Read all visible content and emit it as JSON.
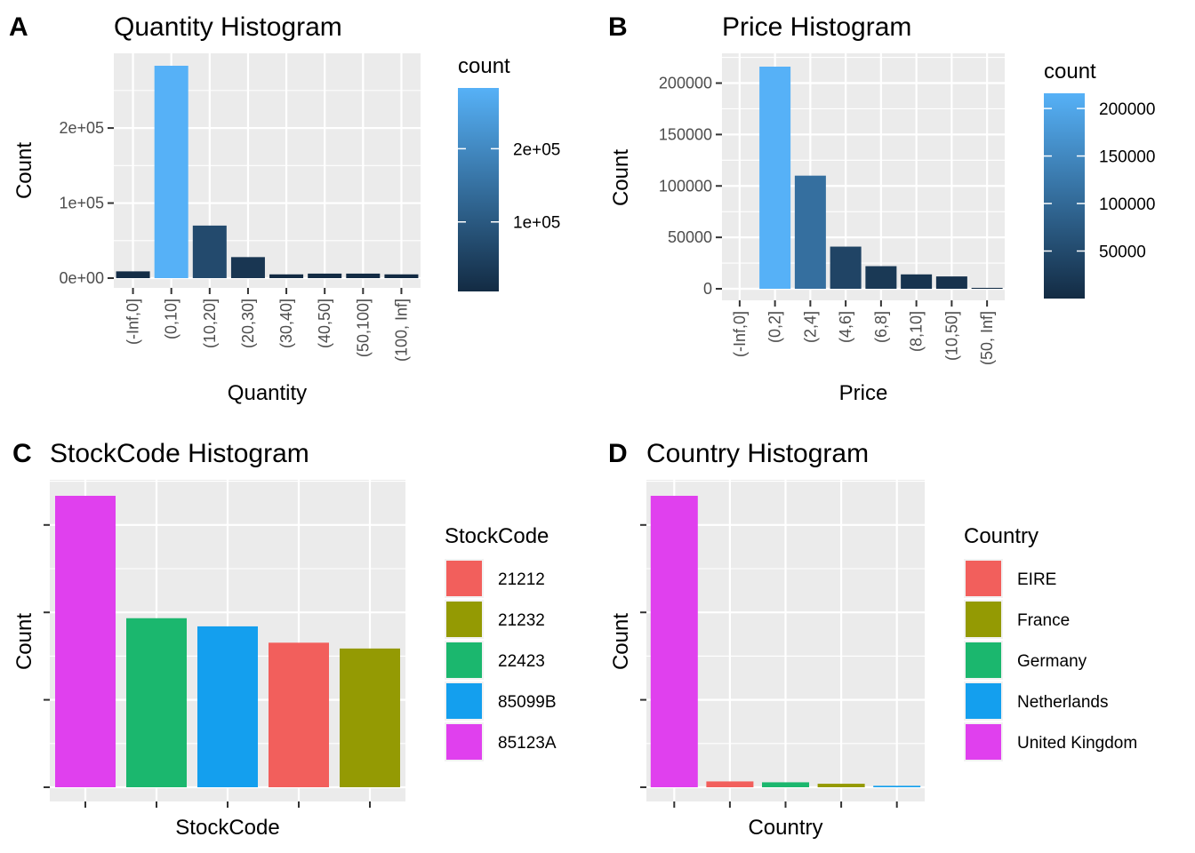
{
  "panels": [
    {
      "tag": "A",
      "title": "Quantity Histogram"
    },
    {
      "tag": "B",
      "title": "Price Histogram"
    },
    {
      "tag": "C",
      "title": "StockCode Histogram"
    },
    {
      "tag": "D",
      "title": "Country Histogram"
    }
  ],
  "chart_data": [
    {
      "type": "bar",
      "title": "Quantity Histogram",
      "xlabel": "Quantity",
      "ylabel": "Count",
      "categories": [
        "(-Inf,0]",
        "(0,10]",
        "(10,20]",
        "(20,30]",
        "(30,40]",
        "(40,50]",
        "(50,100]",
        "(100, Inf]"
      ],
      "values": [
        9000,
        283000,
        70000,
        28000,
        5000,
        6000,
        6000,
        5000
      ],
      "ylim": [
        0,
        283000
      ],
      "yticks": [
        0,
        100000,
        200000
      ],
      "yticklabels": [
        "0e+00",
        "1e+05",
        "2e+05"
      ],
      "grid": true,
      "fill_scale": "count",
      "legend": {
        "title": "count",
        "labels": [
          "1e+05",
          "2e+05"
        ],
        "values": [
          100000,
          200000
        ],
        "min": 5000,
        "max": 283000,
        "low_color": "#132B43",
        "high_color": "#56B1F7",
        "position": "right"
      }
    },
    {
      "type": "bar",
      "title": "Price Histogram",
      "xlabel": "Price",
      "ylabel": "Count",
      "categories": [
        "(-Inf,0]",
        "(0,2]",
        "(2,4]",
        "(4,6]",
        "(6,8]",
        "(8,10]",
        "(10,50]",
        "(50, Inf]"
      ],
      "values": [
        0,
        216000,
        110000,
        41000,
        22000,
        14000,
        12000,
        900
      ],
      "ylim": [
        0,
        216000
      ],
      "yticks": [
        0,
        50000,
        100000,
        150000,
        200000
      ],
      "yticklabels": [
        "0",
        "50000",
        "100000",
        "150000",
        "200000"
      ],
      "grid": true,
      "fill_scale": "count",
      "legend": {
        "title": "count",
        "labels": [
          "50000",
          "100000",
          "150000",
          "200000"
        ],
        "values": [
          50000,
          100000,
          150000,
          200000
        ],
        "min": 0,
        "max": 216000,
        "low_color": "#132B43",
        "high_color": "#56B1F7",
        "position": "right"
      }
    },
    {
      "type": "bar",
      "title": "StockCode Histogram",
      "xlabel": "StockCode",
      "ylabel": "Count",
      "categories": [
        "85123A",
        "22423",
        "85099B",
        "21212",
        "21232"
      ],
      "values": [
        1000,
        580,
        552,
        496,
        476
      ],
      "colors": [
        "#E040EE",
        "#1BB76E",
        "#149FEE",
        "#F25F5C",
        "#949A03"
      ],
      "ylim": [
        0,
        1000
      ],
      "grid": true,
      "legend": {
        "title": "StockCode",
        "labels": [
          "21212",
          "21232",
          "22423",
          "85099B",
          "85123A"
        ],
        "colors": [
          "#F25F5C",
          "#949A03",
          "#1BB76E",
          "#149FEE",
          "#E040EE"
        ],
        "position": "right"
      }
    },
    {
      "type": "bar",
      "title": "Country Histogram",
      "xlabel": "Country",
      "ylabel": "Count",
      "categories": [
        "United Kingdom",
        "EIRE",
        "Germany",
        "France",
        "Netherlands"
      ],
      "values": [
        1000,
        20,
        17,
        12,
        5
      ],
      "colors": [
        "#E040EE",
        "#F25F5C",
        "#1BB76E",
        "#949A03",
        "#149FEE"
      ],
      "ylim": [
        0,
        1000
      ],
      "grid": true,
      "legend": {
        "title": "Country",
        "labels": [
          "EIRE",
          "France",
          "Germany",
          "Netherlands",
          "United Kingdom"
        ],
        "colors": [
          "#F25F5C",
          "#949A03",
          "#1BB76E",
          "#149FEE",
          "#E040EE"
        ],
        "position": "right"
      }
    }
  ]
}
